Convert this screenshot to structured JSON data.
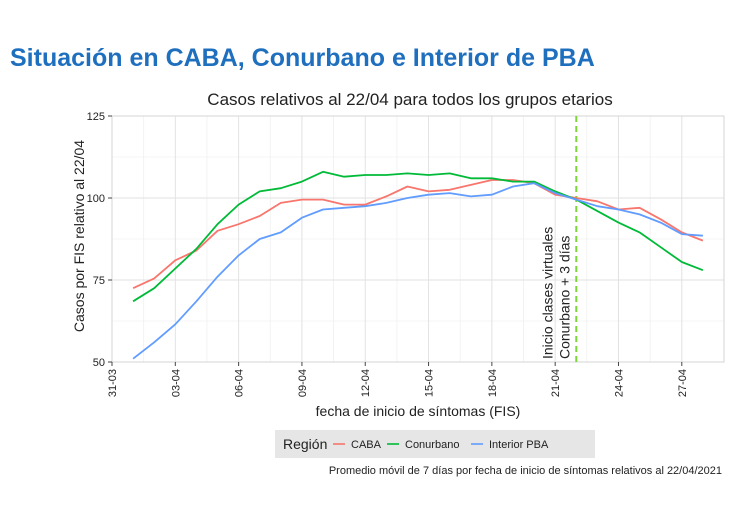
{
  "page": {
    "title": "Situación en CABA, Conurbano e Interior de PBA"
  },
  "chart_data": {
    "type": "line",
    "title": "Casos relativos al 22/04 para todos los grupos etarios",
    "xlabel": "fecha de inicio de síntomas (FIS)",
    "ylabel": "Casos por FIS relativo al 22/04",
    "caption": "Promedio móvil de 7 días por fecha de inicio de síntomas relativos al 22/04/2021",
    "x": [
      "01-04",
      "02-04",
      "03-04",
      "04-04",
      "05-04",
      "06-04",
      "07-04",
      "08-04",
      "09-04",
      "10-04",
      "11-04",
      "12-04",
      "13-04",
      "14-04",
      "15-04",
      "16-04",
      "17-04",
      "18-04",
      "19-04",
      "20-04",
      "21-04",
      "22-04",
      "23-04",
      "24-04",
      "25-04",
      "26-04",
      "27-04",
      "28-04"
    ],
    "xticks": [
      "31-03",
      "03-04",
      "06-04",
      "09-04",
      "12-04",
      "15-04",
      "18-04",
      "21-04",
      "24-04",
      "27-04"
    ],
    "xlim": [
      "31-03",
      "29-04"
    ],
    "ylim": [
      50,
      125
    ],
    "yticks": [
      50,
      75,
      100,
      125
    ],
    "grid": true,
    "legend_title": "Región",
    "legend_position": "bottom",
    "series": [
      {
        "name": "CABA",
        "color": "#f8766d",
        "values": [
          72.5,
          75.5,
          81,
          84,
          90,
          92,
          94.5,
          98.5,
          99.5,
          99.5,
          98,
          98,
          100.5,
          103.5,
          102,
          102.5,
          104,
          105.5,
          105.5,
          104.5,
          101,
          100,
          99,
          96.5,
          97,
          93.5,
          89.5,
          87
        ]
      },
      {
        "name": "Conurbano",
        "color": "#00ba38",
        "values": [
          68.5,
          72.5,
          78.5,
          84.5,
          92,
          98,
          102,
          103,
          105,
          108,
          106.5,
          107,
          107,
          107.5,
          107,
          107.5,
          106,
          106,
          105,
          105,
          102,
          99.5,
          96,
          92.5,
          89.5,
          85,
          80.5,
          78
        ]
      },
      {
        "name": "Interior PBA",
        "color": "#619cff",
        "values": [
          51,
          56,
          61.5,
          68.5,
          76,
          82.5,
          87.5,
          89.5,
          94,
          96.5,
          97,
          97.5,
          98.5,
          100,
          101,
          101.5,
          100.5,
          101,
          103.5,
          104.5,
          101.5,
          99.5,
          97.5,
          96.5,
          95,
          92.5,
          89,
          88.5
        ]
      }
    ],
    "annotations": [
      {
        "x": "22-04",
        "style": "dashed",
        "color": "#7cd63a",
        "lines": [
          "Inicio clases virtuales",
          "Conurbano + 3 días"
        ]
      }
    ]
  }
}
